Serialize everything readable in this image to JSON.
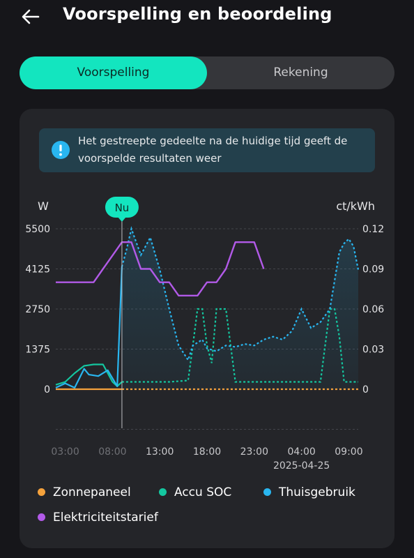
{
  "header": {
    "title": "Voorspelling en beoordeling",
    "back_icon": "arrow-left-icon"
  },
  "tabs": [
    {
      "label": "Voorspelling",
      "active": true
    },
    {
      "label": "Rekening",
      "active": false
    }
  ],
  "notice": {
    "icon": "info-icon",
    "text": "Het gestreepte gedeelte na de huidige tijd geeft de voorspelde resultaten weer"
  },
  "colors": {
    "accent": "#13e5bf",
    "solar": "#f5a23c",
    "soc": "#14c7a0",
    "home": "#29b6f0",
    "tariff": "#b25ae8"
  },
  "chart_data": {
    "type": "line",
    "y_left_unit": "W",
    "y_right_unit": "ct/kWh",
    "y_left_ticks": [
      "5500",
      "4125",
      "2750",
      "1375",
      "0"
    ],
    "y_right_ticks": [
      "0.12",
      "0.09",
      "0.06",
      "0.03",
      "0"
    ],
    "ylim_left": [
      0,
      5500
    ],
    "ylim_right": [
      0,
      0.12
    ],
    "x_ticks": [
      "03:00",
      "08:00",
      "13:00",
      "18:00",
      "23:00",
      "04:00",
      "09:00"
    ],
    "x_date_label": "2025-04-25",
    "now_label": "Nu",
    "now_time": "09:00",
    "x_range": [
      "2025-04-24 02:00",
      "2025-04-25 10:00"
    ],
    "series": [
      {
        "name": "Zonnepaneel",
        "axis": "left",
        "x": [
          "2025-04-24 02:00",
          "2025-04-25 10:00"
        ],
        "values": [
          0,
          0
        ]
      },
      {
        "name": "Accu SOC",
        "axis": "left",
        "x": [
          "2025-04-24 02:00",
          "2025-04-24 03:00",
          "2025-04-24 04:00",
          "2025-04-24 05:00",
          "2025-04-24 06:00",
          "2025-04-24 07:00",
          "2025-04-24 08:00",
          "2025-04-24 08:30",
          "2025-04-24 09:00",
          "2025-04-24 10:00",
          "2025-04-24 12:00",
          "2025-04-24 14:00",
          "2025-04-24 16:00",
          "2025-04-24 16:30",
          "2025-04-24 17:00",
          "2025-04-24 17:30",
          "2025-04-24 18:00",
          "2025-04-24 18:30",
          "2025-04-24 19:00",
          "2025-04-24 20:00",
          "2025-04-24 20:30",
          "2025-04-24 21:00",
          "2025-04-24 22:00",
          "2025-04-25 00:00",
          "2025-04-25 03:00",
          "2025-04-25 05:00",
          "2025-04-25 06:00",
          "2025-04-25 06:30",
          "2025-04-25 07:00",
          "2025-04-25 07:30",
          "2025-04-25 08:00",
          "2025-04-25 08:30",
          "2025-04-25 09:00",
          "2025-04-25 10:00"
        ],
        "values": [
          150,
          250,
          550,
          800,
          850,
          850,
          250,
          100,
          250,
          250,
          250,
          250,
          300,
          1500,
          2750,
          2750,
          1500,
          900,
          2750,
          2750,
          1500,
          250,
          250,
          250,
          250,
          250,
          250,
          1500,
          2750,
          2750,
          1800,
          250,
          250,
          250
        ]
      },
      {
        "name": "Thuisgebruik",
        "axis": "left",
        "x": [
          "2025-04-24 02:00",
          "2025-04-24 03:00",
          "2025-04-24 04:00",
          "2025-04-24 05:00",
          "2025-04-24 05:30",
          "2025-04-24 06:30",
          "2025-04-24 07:30",
          "2025-04-24 08:30",
          "2025-04-24 09:00",
          "2025-04-24 09:30",
          "2025-04-24 10:00",
          "2025-04-24 11:00",
          "2025-04-24 12:00",
          "2025-04-24 13:00",
          "2025-04-24 14:00",
          "2025-04-24 15:00",
          "2025-04-24 16:00",
          "2025-04-24 16:30",
          "2025-04-24 17:30",
          "2025-04-24 18:00",
          "2025-04-24 19:00",
          "2025-04-24 20:00",
          "2025-04-24 21:00",
          "2025-04-24 22:00",
          "2025-04-24 23:00",
          "2025-04-25 00:00",
          "2025-04-25 01:00",
          "2025-04-25 02:00",
          "2025-04-25 03:00",
          "2025-04-25 04:00",
          "2025-04-25 05:00",
          "2025-04-25 06:00",
          "2025-04-25 07:00",
          "2025-04-25 08:00",
          "2025-04-25 08:30",
          "2025-04-25 09:00",
          "2025-04-25 09:30",
          "2025-04-25 10:00"
        ],
        "values": [
          50,
          200,
          50,
          700,
          500,
          450,
          650,
          100,
          4200,
          4800,
          5500,
          4600,
          5200,
          4100,
          2750,
          1500,
          1000,
          1500,
          1700,
          1400,
          1300,
          1500,
          1450,
          1550,
          1500,
          1700,
          1800,
          1700,
          2000,
          2750,
          2100,
          2300,
          2750,
          4700,
          5000,
          5150,
          4900,
          4100
        ]
      },
      {
        "name": "Elektriciteitstarief",
        "axis": "right",
        "x": [
          "2025-04-24 02:00",
          "2025-04-24 03:00",
          "2025-04-24 04:00",
          "2025-04-24 05:00",
          "2025-04-24 06:00",
          "2025-04-24 07:00",
          "2025-04-24 08:00",
          "2025-04-24 09:00",
          "2025-04-24 10:00",
          "2025-04-24 11:00",
          "2025-04-24 12:00",
          "2025-04-24 13:00",
          "2025-04-24 14:00",
          "2025-04-24 15:00",
          "2025-04-24 16:00",
          "2025-04-24 17:00",
          "2025-04-24 18:00",
          "2025-04-24 19:00",
          "2025-04-24 20:00",
          "2025-04-24 21:00",
          "2025-04-24 22:00",
          "2025-04-24 23:00",
          "2025-04-25 00:00"
        ],
        "values": [
          0.08,
          0.08,
          0.08,
          0.08,
          0.08,
          0.09,
          0.1,
          0.11,
          0.11,
          0.09,
          0.09,
          0.08,
          0.08,
          0.07,
          0.07,
          0.07,
          0.08,
          0.08,
          0.09,
          0.11,
          0.11,
          0.11,
          0.09
        ]
      }
    ]
  },
  "legend": [
    {
      "label": "Zonnepaneel",
      "color": "#f5a23c"
    },
    {
      "label": "Accu SOC",
      "color": "#14c7a0"
    },
    {
      "label": "Thuisgebruik",
      "color": "#29b6f0"
    },
    {
      "label": "Elektriciteitstarief",
      "color": "#b25ae8"
    }
  ]
}
